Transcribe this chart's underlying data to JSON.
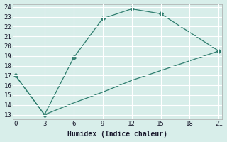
{
  "xlabel": "Humidex (Indice chaleur)",
  "line1_x": [
    0,
    3,
    6,
    9,
    12,
    15,
    21
  ],
  "line1_y": [
    17,
    13,
    18.8,
    22.8,
    23.8,
    23.3,
    19.5
  ],
  "line1_marker_x": [
    0,
    3,
    6,
    9,
    12,
    15
  ],
  "line1_marker_y": [
    17,
    13,
    18.8,
    22.8,
    23.8,
    23.3
  ],
  "line2_x": [
    0,
    3,
    6,
    9,
    12,
    15,
    18,
    21
  ],
  "line2_y": [
    17,
    13,
    14.2,
    15.3,
    16.5,
    17.5,
    18.5,
    19.5
  ],
  "line2_marker_x": [
    21
  ],
  "line2_marker_y": [
    19.5
  ],
  "line_color": "#2e7d6e",
  "bg_color": "#d8eeea",
  "grid_color": "#ffffff",
  "xlim": [
    0,
    21
  ],
  "ylim": [
    13,
    24
  ],
  "xticks": [
    0,
    3,
    6,
    9,
    12,
    15,
    18,
    21
  ],
  "yticks": [
    13,
    14,
    15,
    16,
    17,
    18,
    19,
    20,
    21,
    22,
    23,
    24
  ],
  "markersize": 3
}
